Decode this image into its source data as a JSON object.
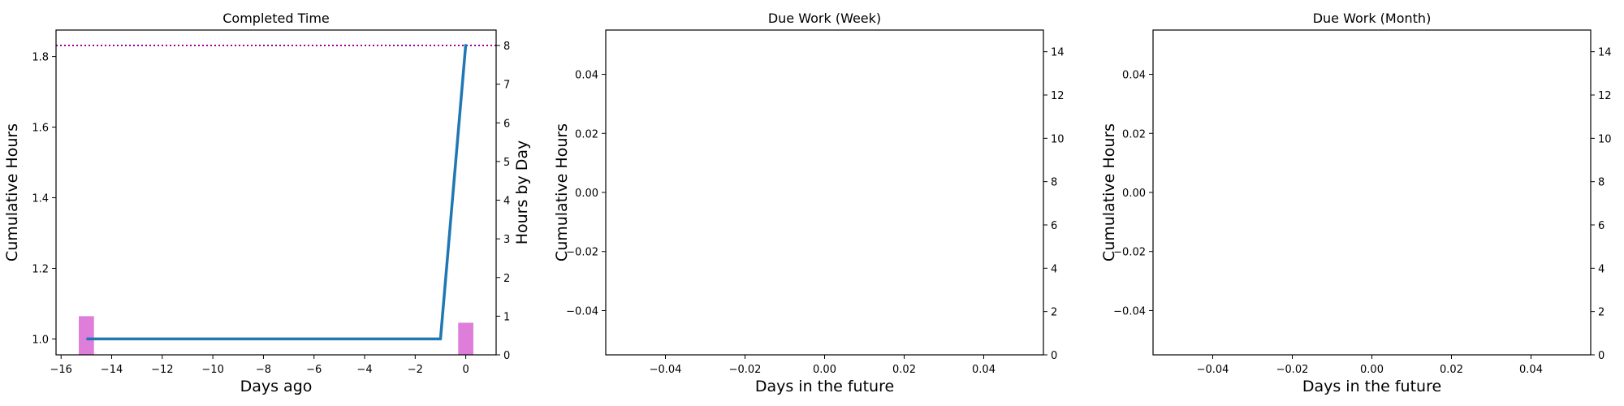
{
  "chart_data": [
    {
      "type": "line",
      "title": "Completed Time",
      "xlabel": "Days ago",
      "ylabel": "Cumulative Hours",
      "y2label": "Hours by Day",
      "xlim": [
        -16.2,
        1.2
      ],
      "ylim": [
        0.955,
        1.875
      ],
      "y2lim": [
        0,
        8.4
      ],
      "xticks": [
        -16,
        -14,
        -12,
        -10,
        -8,
        -6,
        -4,
        -2,
        0
      ],
      "yticks": [
        1.0,
        1.2,
        1.4,
        1.6,
        1.8
      ],
      "y2ticks": [
        0,
        1,
        2,
        3,
        4,
        5,
        6,
        7,
        8
      ],
      "grid": false,
      "series": [
        {
          "kind": "line",
          "color": "#1f77b4",
          "x": [
            -15,
            -1,
            0
          ],
          "y": [
            1.0,
            1.0,
            1.835
          ]
        },
        {
          "kind": "bar",
          "axis": "y2",
          "color": "#da70d6",
          "x": [
            -15,
            0
          ],
          "y": [
            1.0,
            0.83
          ]
        },
        {
          "kind": "hline",
          "axis": "y2",
          "color": "#9b009b",
          "style": "dotted",
          "y": 8.0
        }
      ]
    },
    {
      "type": "line",
      "title": "Due Work (Week)",
      "xlabel": "Days in the future",
      "ylabel": "Cumulative Hours",
      "xlim": [
        -0.055,
        0.055
      ],
      "ylim": [
        -0.055,
        0.055
      ],
      "y2lim": [
        0,
        15
      ],
      "xticks": [
        -0.04,
        -0.02,
        0.0,
        0.02,
        0.04
      ],
      "xticklabels": [
        "−0.04",
        "−0.02",
        "0.00",
        "0.02",
        "0.04"
      ],
      "yticks": [
        0.04,
        0.02,
        0.0,
        -0.02,
        -0.04
      ],
      "yticklabels": [
        "0.04",
        "0.02",
        "0.00",
        "−0.02",
        "−0.04"
      ],
      "y2ticks": [
        0,
        2,
        4,
        6,
        8,
        10,
        12,
        14
      ],
      "grid": false,
      "series": []
    },
    {
      "type": "line",
      "title": "Due Work (Month)",
      "xlabel": "Days in the future",
      "ylabel": "Cumulative Hours",
      "xlim": [
        -0.055,
        0.055
      ],
      "ylim": [
        -0.055,
        0.055
      ],
      "y2lim": [
        0,
        15
      ],
      "xticks": [
        -0.04,
        -0.02,
        0.0,
        0.02,
        0.04
      ],
      "xticklabels": [
        "−0.04",
        "−0.02",
        "0.00",
        "0.02",
        "0.04"
      ],
      "yticks": [
        0.04,
        0.02,
        0.0,
        -0.02,
        -0.04
      ],
      "yticklabels": [
        "0.04",
        "0.02",
        "0.00",
        "−0.02",
        "−0.04"
      ],
      "y2ticks": [
        0,
        2,
        4,
        6,
        8,
        10,
        12,
        14
      ],
      "grid": false,
      "series": []
    }
  ]
}
